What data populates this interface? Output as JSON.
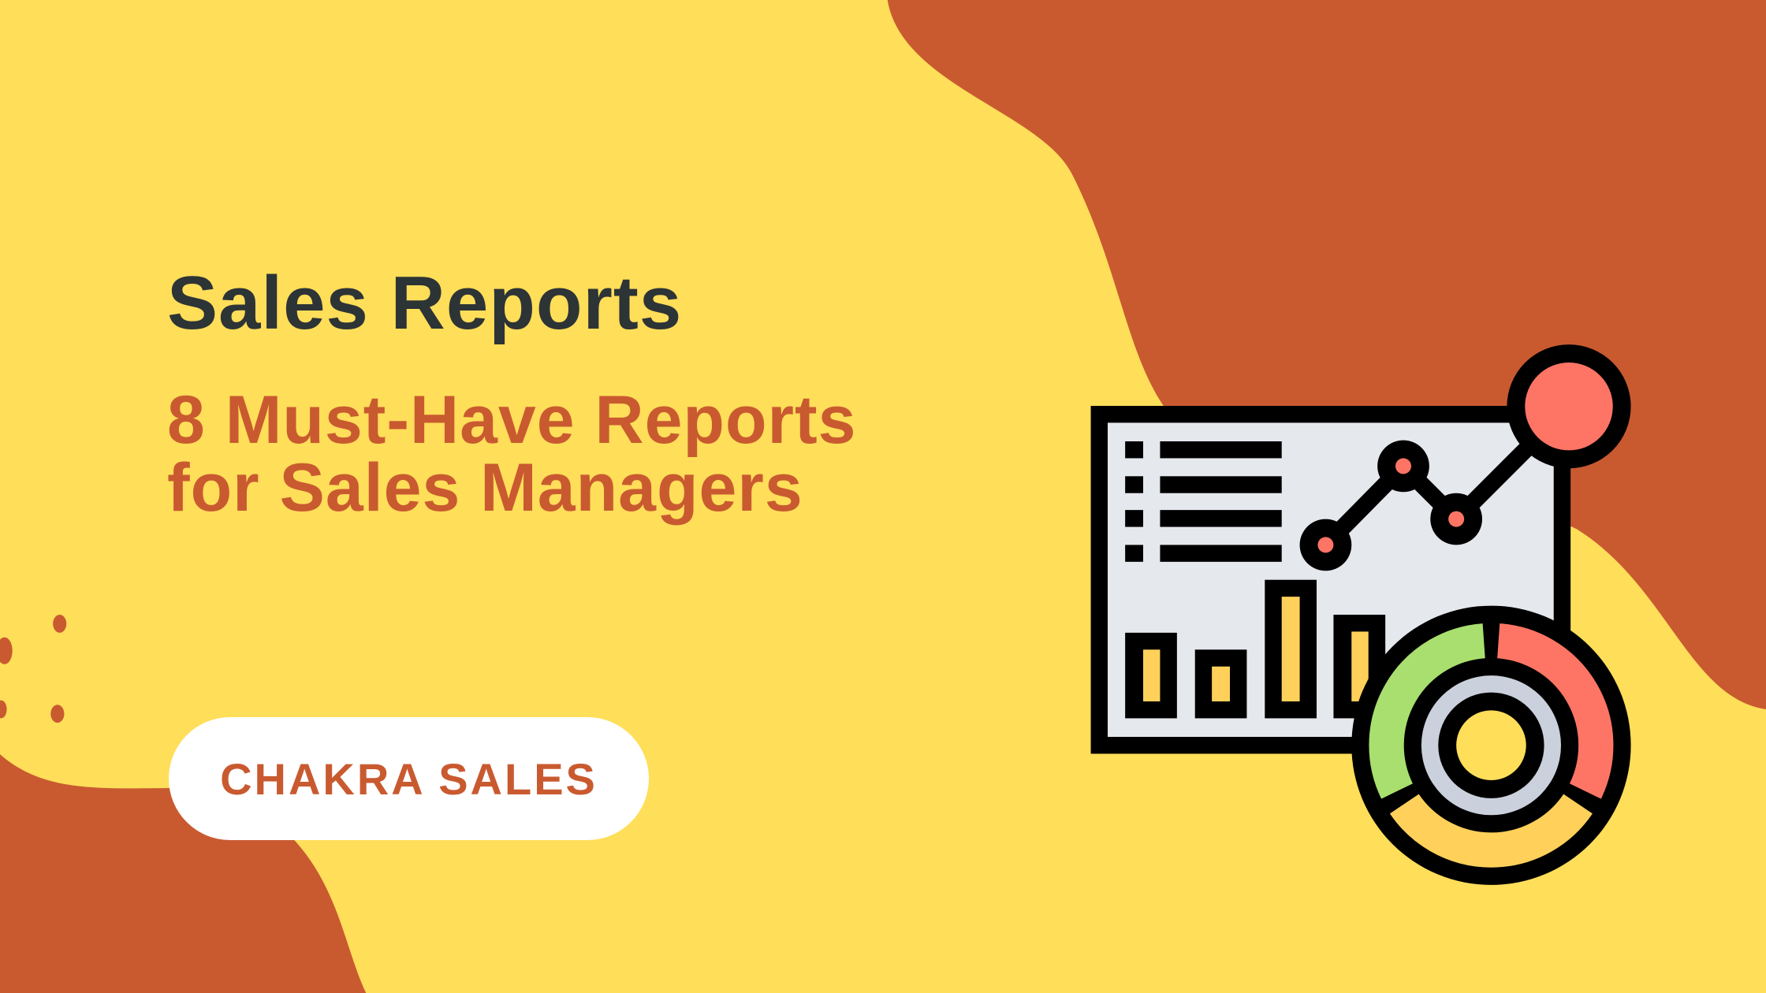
{
  "title": "Sales Reports",
  "subtitle": {
    "line1": "8 Must-Have Reports",
    "line2": "for Sales Managers"
  },
  "brand": {
    "label": "CHAKRA SALES"
  },
  "illustration": {
    "icon": "sales-report-dashboard-icon"
  },
  "colors": {
    "background": "#FFDE59",
    "accent": "#C95A30",
    "title": "#2D3436",
    "board": "#E5E8ED",
    "coral": "#FF7565",
    "green": "#A9DF6E",
    "yellow": "#FFD15A",
    "gray": "#CBD1DC",
    "outline": "#000000"
  }
}
